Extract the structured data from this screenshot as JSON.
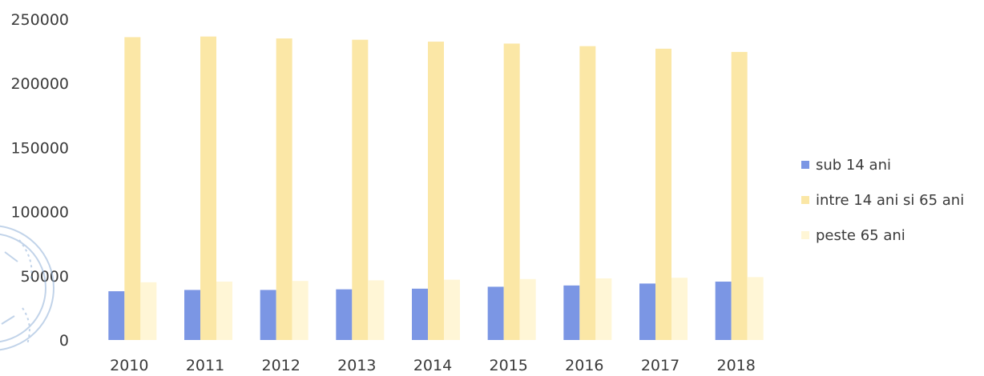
{
  "chart_data": {
    "type": "bar",
    "categories": [
      "2010",
      "2011",
      "2012",
      "2013",
      "2014",
      "2015",
      "2016",
      "2017",
      "2018"
    ],
    "series": [
      {
        "name": "sub 14 ani",
        "values": [
          38000,
          39000,
          39000,
          39500,
          40000,
          41500,
          42500,
          44000,
          45500
        ],
        "color": "#7b96e4"
      },
      {
        "name": "intre 14 ani si 65 ani",
        "values": [
          236000,
          236500,
          235000,
          234000,
          232500,
          231000,
          229000,
          227000,
          224500
        ],
        "color": "#fbe7a6"
      },
      {
        "name": "peste 65 ani",
        "values": [
          45000,
          45500,
          46000,
          46500,
          47000,
          47500,
          48000,
          48500,
          49000
        ],
        "color": "#fff6d6"
      }
    ],
    "yticks": [
      "0",
      "50000",
      "100000",
      "150000",
      "200000",
      "250000"
    ],
    "ylim": [
      0,
      250000
    ],
    "legend_position": "right",
    "grid": false
  }
}
